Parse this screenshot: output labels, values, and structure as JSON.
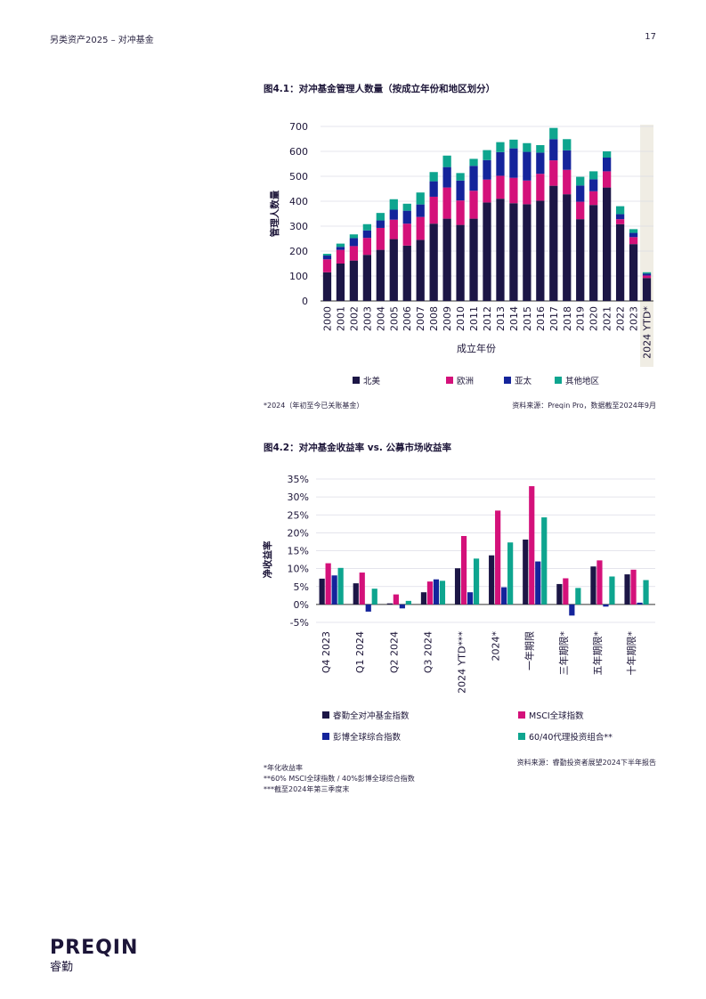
{
  "header": {
    "title": "另类资产2025 – 对冲基金",
    "page_number": "17"
  },
  "figure1": {
    "title": "图4.1：对冲基金管理人数量（按成立年份和地区划分）",
    "footnote": "*2024（年初至今已关账基金）",
    "source": "资料来源：Preqin Pro，数据截至2024年9月"
  },
  "figure2": {
    "title": "图4.2：对冲基金收益率 vs. 公募市场收益率",
    "footnotes": [
      "*年化收益率",
      "**60% MSCI全球指数 / 40%彭博全球综合指数",
      "***截至2024年第三季度末"
    ],
    "source": "资料来源：睿勤投资者展望2024下半年报告"
  },
  "logo": {
    "wordmark": "PREQIN",
    "subtitle": "睿勤"
  },
  "chart_data": [
    {
      "type": "bar",
      "stacked": true,
      "xlabel": "成立年份",
      "ylabel": "管理人数量",
      "ylim": [
        0,
        700
      ],
      "yticks": [
        0,
        100,
        200,
        300,
        400,
        500,
        600,
        700
      ],
      "grid": true,
      "legend_position": "bottom",
      "highlight_category": "2024 YTD*",
      "categories": [
        "2000",
        "2001",
        "2002",
        "2003",
        "2004",
        "2005",
        "2006",
        "2007",
        "2008",
        "2009",
        "2010",
        "2011",
        "2012",
        "2013",
        "2014",
        "2015",
        "2016",
        "2017",
        "2018",
        "2019",
        "2020",
        "2021",
        "2022",
        "2023",
        "2024 YTD*"
      ],
      "series": [
        {
          "name": "北美",
          "color": "#1c1646",
          "values": [
            115,
            150,
            162,
            185,
            205,
            248,
            222,
            245,
            310,
            330,
            305,
            330,
            395,
            410,
            392,
            388,
            402,
            462,
            428,
            328,
            385,
            455,
            308,
            228,
            92
          ]
        },
        {
          "name": "欧洲",
          "color": "#d4117a",
          "values": [
            52,
            55,
            58,
            68,
            88,
            78,
            88,
            92,
            108,
            125,
            98,
            112,
            92,
            92,
            102,
            95,
            108,
            102,
            98,
            70,
            55,
            65,
            20,
            28,
            10
          ]
        },
        {
          "name": "亚太",
          "color": "#14249b",
          "values": [
            15,
            12,
            32,
            30,
            30,
            40,
            52,
            50,
            62,
            82,
            80,
            100,
            78,
            95,
            118,
            115,
            85,
            85,
            78,
            65,
            48,
            55,
            20,
            17,
            8
          ]
        },
        {
          "name": "其他地区",
          "color": "#0ea58f",
          "values": [
            7,
            13,
            15,
            25,
            30,
            42,
            28,
            48,
            37,
            46,
            30,
            28,
            40,
            40,
            35,
            35,
            30,
            45,
            45,
            35,
            32,
            25,
            32,
            15,
            5
          ]
        }
      ]
    },
    {
      "type": "bar",
      "ylabel": "净收益率",
      "ylim": [
        -5,
        35
      ],
      "yticks": [
        "-5%",
        "0%",
        "5%",
        "10%",
        "15%",
        "20%",
        "25%",
        "30%",
        "35%"
      ],
      "unit": "%",
      "grid": true,
      "legend_position": "bottom",
      "categories": [
        "Q4 2023",
        "Q1 2024",
        "Q2 2024",
        "Q3 2024",
        "2024 YTD***",
        "2024*",
        "一年期限",
        "三年期限*",
        "五年期限*",
        "十年期限*"
      ],
      "series": [
        {
          "name": "睿勤全对冲基金指数",
          "color": "#1c1646",
          "values": [
            7.2,
            5.9,
            0.3,
            3.4,
            10.1,
            13.7,
            18.1,
            5.7,
            10.6,
            8.4
          ]
        },
        {
          "name": "MSCI全球指数",
          "color": "#d4117a",
          "values": [
            11.5,
            8.9,
            2.8,
            6.4,
            19.1,
            26.2,
            33.0,
            7.3,
            12.3,
            9.7
          ]
        },
        {
          "name": "彭博全球综合指数",
          "color": "#14249b",
          "values": [
            8.1,
            -2.0,
            -1.1,
            7.0,
            3.4,
            4.8,
            12.0,
            -3.1,
            -0.6,
            0.5
          ]
        },
        {
          "name": "60/40代理投资组合**",
          "color": "#0ea58f",
          "values": [
            10.2,
            4.4,
            1.0,
            6.6,
            12.8,
            17.3,
            24.3,
            4.6,
            7.8,
            6.8
          ]
        }
      ]
    }
  ]
}
